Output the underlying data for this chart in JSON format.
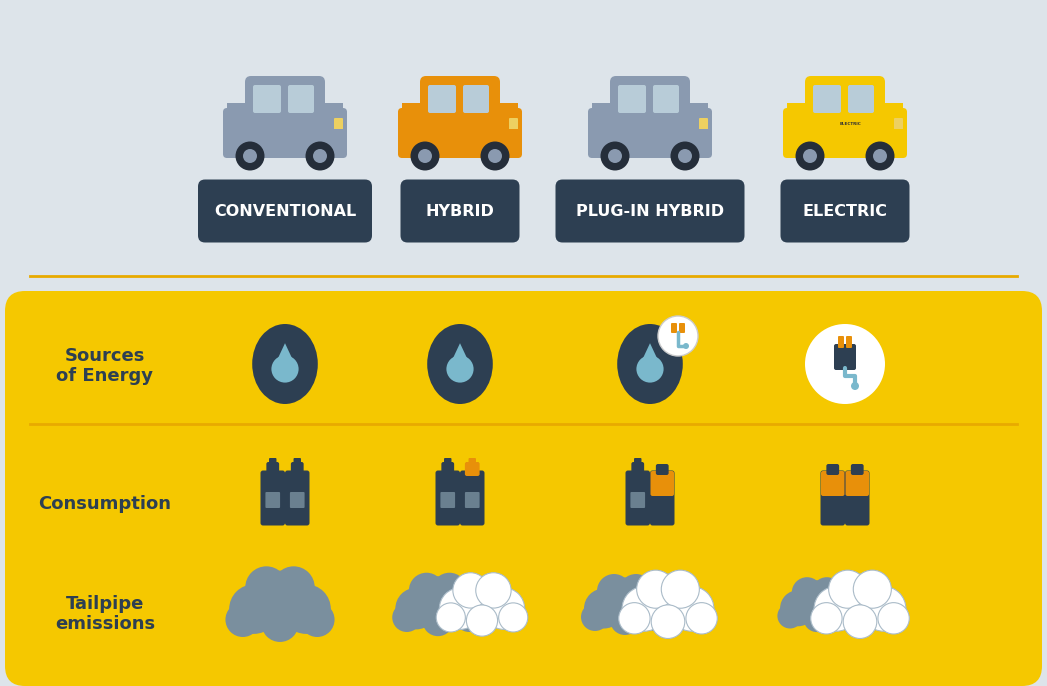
{
  "bg_top": "#dde4ea",
  "bg_bottom": "#f5c800",
  "dark_blue": "#2d3f52",
  "label_bg": "#2d3f52",
  "label_text": "#ffffff",
  "row_label_color": "#2d3f52",
  "divider_color": "#e8aa00",
  "white": "#ffffff",
  "gray_car": "#8a9ab0",
  "orange_car": "#e8900a",
  "yellow_car": "#f5c800",
  "dark_circle": "#2d3f52",
  "drop_color": "#7ab8cc",
  "fuel_dark": "#2d3f52",
  "fuel_window": "#6a8090",
  "fuel_orange": "#e8900a",
  "battery_orange": "#e8900a",
  "cloud_gray": "#7a8f9e",
  "cloud_white": "#ffffff",
  "plug_cord": "#7ab8cc",
  "categories": [
    "CONVENTIONAL",
    "HYBRID",
    "PLUG-IN HYBRID",
    "ELECTRIC"
  ],
  "row_labels": [
    "Sources\nof Energy",
    "Consumption",
    "Tailpipe\nemissions"
  ],
  "label_fontsize": 11.5,
  "row_label_fontsize": 13
}
